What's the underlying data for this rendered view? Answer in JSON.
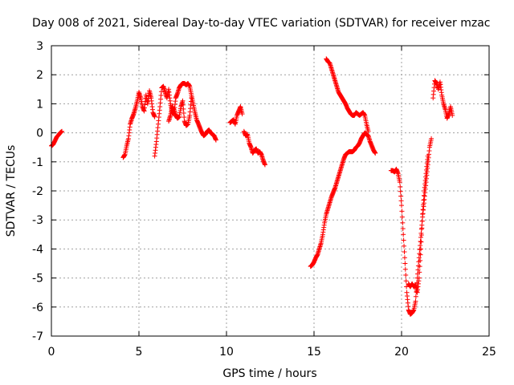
{
  "chart_data": {
    "type": "scatter",
    "title": "Day 008 of 2021, Sidereal Day-to-day VTEC variation (SDTVAR) for receiver mzac",
    "xlabel": "GPS time / hours",
    "ylabel": "SDTVAR / TECUs",
    "xlim": [
      0,
      25
    ],
    "ylim": [
      -7,
      3
    ],
    "xticks": [
      0,
      5,
      10,
      15,
      20,
      25
    ],
    "yticks": [
      -7,
      -6,
      -5,
      -4,
      -3,
      -2,
      -1,
      0,
      1,
      2,
      3
    ],
    "grid": true,
    "marker": "+",
    "color": "#ff0000",
    "series": [
      {
        "name": "SDTVAR",
        "segments": [
          [
            [
              0.0,
              -0.45
            ],
            [
              0.1,
              -0.4
            ],
            [
              0.2,
              -0.28
            ],
            [
              0.3,
              -0.15
            ],
            [
              0.4,
              -0.08
            ],
            [
              0.5,
              0.0
            ],
            [
              0.6,
              0.05
            ]
          ],
          [
            [
              4.1,
              -0.85
            ],
            [
              4.2,
              -0.75
            ],
            [
              4.3,
              -0.45
            ],
            [
              4.4,
              -0.2
            ],
            [
              4.5,
              0.3
            ],
            [
              4.6,
              0.5
            ],
            [
              4.7,
              0.65
            ],
            [
              4.8,
              0.85
            ],
            [
              4.9,
              1.1
            ],
            [
              5.0,
              1.4
            ],
            [
              5.1,
              1.2
            ],
            [
              5.2,
              0.9
            ],
            [
              5.3,
              0.75
            ],
            [
              5.4,
              1.3
            ],
            [
              5.5,
              1.0
            ],
            [
              5.6,
              1.45
            ],
            [
              5.7,
              1.2
            ],
            [
              5.8,
              0.7
            ],
            [
              5.9,
              0.55
            ]
          ],
          [
            [
              5.9,
              -0.8
            ],
            [
              6.0,
              -0.3
            ],
            [
              6.1,
              0.3
            ],
            [
              6.2,
              0.9
            ],
            [
              6.3,
              1.55
            ],
            [
              6.4,
              1.6
            ],
            [
              6.5,
              1.4
            ],
            [
              6.6,
              1.2
            ],
            [
              6.7,
              1.5
            ],
            [
              6.8,
              1.0
            ],
            [
              6.9,
              0.7
            ],
            [
              7.0,
              0.65
            ],
            [
              7.1,
              1.2
            ],
            [
              7.2,
              1.35
            ],
            [
              7.3,
              1.55
            ],
            [
              7.4,
              1.65
            ],
            [
              7.5,
              1.7
            ],
            [
              7.6,
              1.7
            ],
            [
              7.7,
              1.65
            ],
            [
              7.8,
              1.7
            ],
            [
              7.9,
              1.6
            ],
            [
              8.0,
              1.3
            ],
            [
              8.1,
              1.0
            ],
            [
              8.2,
              0.7
            ],
            [
              8.3,
              0.45
            ],
            [
              8.4,
              0.3
            ],
            [
              8.5,
              0.15
            ],
            [
              8.6,
              0.0
            ],
            [
              8.7,
              -0.1
            ],
            [
              8.8,
              -0.05
            ],
            [
              8.9,
              0.05
            ],
            [
              9.0,
              0.1
            ],
            [
              9.1,
              0.0
            ],
            [
              9.2,
              -0.05
            ],
            [
              9.3,
              -0.1
            ],
            [
              9.4,
              -0.25
            ]
          ],
          [
            [
              6.7,
              0.4
            ],
            [
              6.8,
              0.6
            ],
            [
              6.9,
              0.9
            ],
            [
              7.0,
              0.8
            ],
            [
              7.1,
              0.6
            ],
            [
              7.2,
              0.5
            ],
            [
              7.3,
              0.55
            ],
            [
              7.4,
              0.9
            ],
            [
              7.5,
              1.1
            ],
            [
              7.6,
              0.4
            ],
            [
              7.7,
              0.25
            ],
            [
              7.8,
              0.3
            ],
            [
              7.9,
              0.6
            ],
            [
              8.0,
              1.2
            ]
          ],
          [
            [
              10.2,
              0.35
            ],
            [
              10.3,
              0.4
            ],
            [
              10.4,
              0.45
            ],
            [
              10.5,
              0.3
            ],
            [
              10.6,
              0.6
            ],
            [
              10.7,
              0.75
            ],
            [
              10.8,
              0.9
            ],
            [
              10.9,
              0.65
            ]
          ],
          [
            [
              11.0,
              0.05
            ],
            [
              11.1,
              -0.1
            ],
            [
              11.2,
              -0.05
            ],
            [
              11.3,
              -0.35
            ],
            [
              11.4,
              -0.5
            ],
            [
              11.5,
              -0.7
            ],
            [
              11.6,
              -0.6
            ],
            [
              11.7,
              -0.55
            ],
            [
              11.8,
              -0.7
            ],
            [
              11.9,
              -0.65
            ],
            [
              12.0,
              -0.75
            ],
            [
              12.1,
              -0.95
            ],
            [
              12.2,
              -1.1
            ]
          ],
          [
            [
              14.8,
              -4.6
            ],
            [
              14.9,
              -4.55
            ],
            [
              15.0,
              -4.45
            ],
            [
              15.1,
              -4.3
            ],
            [
              15.2,
              -4.2
            ],
            [
              15.3,
              -4.0
            ],
            [
              15.4,
              -3.8
            ],
            [
              15.5,
              -3.5
            ],
            [
              15.6,
              -3.1
            ],
            [
              15.7,
              -2.8
            ],
            [
              15.8,
              -2.6
            ],
            [
              15.9,
              -2.4
            ],
            [
              16.0,
              -2.2
            ],
            [
              16.1,
              -2.05
            ],
            [
              16.2,
              -1.9
            ],
            [
              16.3,
              -1.7
            ],
            [
              16.4,
              -1.5
            ],
            [
              16.5,
              -1.3
            ],
            [
              16.6,
              -1.1
            ],
            [
              16.7,
              -0.9
            ],
            [
              16.8,
              -0.75
            ],
            [
              16.9,
              -0.7
            ],
            [
              17.0,
              -0.65
            ],
            [
              17.1,
              -0.65
            ],
            [
              17.2,
              -0.65
            ],
            [
              17.3,
              -0.6
            ],
            [
              17.4,
              -0.5
            ],
            [
              17.5,
              -0.45
            ],
            [
              17.6,
              -0.35
            ],
            [
              17.7,
              -0.2
            ],
            [
              17.8,
              -0.1
            ],
            [
              17.9,
              0.0
            ],
            [
              18.0,
              -0.05
            ],
            [
              18.1,
              -0.1
            ],
            [
              18.2,
              -0.3
            ],
            [
              18.3,
              -0.45
            ],
            [
              18.4,
              -0.6
            ],
            [
              18.5,
              -0.7
            ]
          ],
          [
            [
              15.7,
              2.55
            ],
            [
              15.8,
              2.45
            ],
            [
              15.9,
              2.4
            ],
            [
              16.0,
              2.2
            ],
            [
              16.1,
              2.0
            ],
            [
              16.2,
              1.8
            ],
            [
              16.3,
              1.6
            ],
            [
              16.4,
              1.4
            ],
            [
              16.5,
              1.3
            ],
            [
              16.6,
              1.2
            ],
            [
              16.7,
              1.1
            ],
            [
              16.8,
              1.0
            ],
            [
              16.9,
              0.85
            ],
            [
              17.0,
              0.75
            ],
            [
              17.1,
              0.65
            ],
            [
              17.2,
              0.6
            ],
            [
              17.3,
              0.6
            ],
            [
              17.4,
              0.7
            ],
            [
              17.5,
              0.65
            ],
            [
              17.6,
              0.6
            ],
            [
              17.7,
              0.65
            ],
            [
              17.8,
              0.7
            ],
            [
              17.9,
              0.6
            ],
            [
              18.0,
              0.3
            ],
            [
              18.1,
              0.05
            ]
          ],
          [
            [
              19.4,
              -1.3
            ],
            [
              19.5,
              -1.3
            ],
            [
              19.6,
              -1.35
            ],
            [
              19.7,
              -1.25
            ],
            [
              19.8,
              -1.4
            ],
            [
              19.9,
              -1.7
            ],
            [
              20.0,
              -2.5
            ],
            [
              20.1,
              -3.5
            ],
            [
              20.2,
              -4.5
            ],
            [
              20.3,
              -5.5
            ],
            [
              20.4,
              -6.1
            ],
            [
              20.5,
              -6.25
            ],
            [
              20.6,
              -6.2
            ],
            [
              20.7,
              -6.1
            ],
            [
              20.8,
              -5.8
            ],
            [
              20.9,
              -5.0
            ],
            [
              21.0,
              -4.3
            ],
            [
              21.1,
              -3.6
            ],
            [
              21.2,
              -2.9
            ],
            [
              21.3,
              -2.3
            ],
            [
              21.4,
              -1.7
            ],
            [
              21.5,
              -1.1
            ],
            [
              21.6,
              -0.5
            ],
            [
              21.7,
              -0.2
            ]
          ],
          [
            [
              20.4,
              -5.2
            ],
            [
              20.5,
              -5.3
            ],
            [
              20.6,
              -5.2
            ],
            [
              20.7,
              -5.3
            ],
            [
              20.8,
              -5.25
            ],
            [
              20.9,
              -5.5
            ],
            [
              21.0,
              -5.0
            ],
            [
              21.1,
              -4.0
            ],
            [
              21.2,
              -2.8
            ],
            [
              21.3,
              -2.0
            ],
            [
              21.4,
              -1.4
            ],
            [
              21.5,
              -0.8
            ]
          ],
          [
            [
              21.8,
              1.2
            ],
            [
              21.9,
              1.8
            ],
            [
              22.0,
              1.7
            ],
            [
              22.1,
              1.5
            ],
            [
              22.2,
              1.75
            ],
            [
              22.3,
              1.3
            ],
            [
              22.4,
              1.0
            ],
            [
              22.5,
              0.8
            ],
            [
              22.6,
              0.5
            ],
            [
              22.7,
              0.65
            ],
            [
              22.8,
              0.9
            ],
            [
              22.9,
              0.6
            ]
          ]
        ]
      }
    ]
  }
}
